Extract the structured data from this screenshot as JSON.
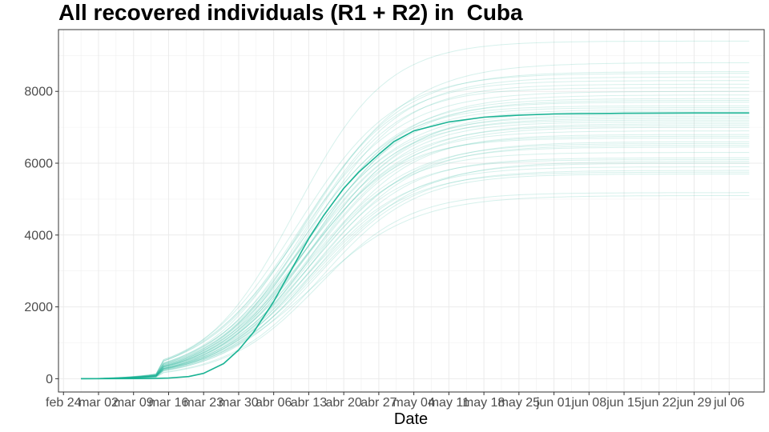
{
  "chart_data": {
    "type": "line",
    "title": "All recovered individuals (R1 + R2) in  Cuba",
    "xlabel": "Date",
    "ylabel": "",
    "x_start_day": -3.5,
    "x_end_day": 130,
    "x_range_days": [
      -8,
      133
    ],
    "ylim": [
      -370,
      9720
    ],
    "y_ticks": [
      0,
      2000,
      4000,
      6000,
      8000
    ],
    "x_ticks": [
      {
        "label": "feb 24",
        "day": -7
      },
      {
        "label": "mar 02",
        "day": 0
      },
      {
        "label": "mar 09",
        "day": 7
      },
      {
        "label": "mar 16",
        "day": 14
      },
      {
        "label": "mar 23",
        "day": 21
      },
      {
        "label": "mar 30",
        "day": 28
      },
      {
        "label": "abr 06",
        "day": 35
      },
      {
        "label": "abr 13",
        "day": 42
      },
      {
        "label": "abr 20",
        "day": 49
      },
      {
        "label": "abr 27",
        "day": 56
      },
      {
        "label": "may 04",
        "day": 63
      },
      {
        "label": "may 11",
        "day": 70
      },
      {
        "label": "may 18",
        "day": 77
      },
      {
        "label": "may 25",
        "day": 84
      },
      {
        "label": "jun 01",
        "day": 91
      },
      {
        "label": "jun 08",
        "day": 98
      },
      {
        "label": "jun 15",
        "day": 105
      },
      {
        "label": "jun 22",
        "day": 112
      },
      {
        "label": "jun 29",
        "day": 119
      },
      {
        "label": "jul 06",
        "day": 126
      }
    ],
    "color": "#1ab394",
    "main_series": {
      "name": "median",
      "points": [
        [
          -3.5,
          0
        ],
        [
          10,
          5
        ],
        [
          14,
          18
        ],
        [
          18,
          60
        ],
        [
          21,
          150
        ],
        [
          25,
          420
        ],
        [
          28,
          800
        ],
        [
          31,
          1300
        ],
        [
          35,
          2150
        ],
        [
          38,
          2900
        ],
        [
          42,
          3900
        ],
        [
          45,
          4550
        ],
        [
          49,
          5300
        ],
        [
          52,
          5750
        ],
        [
          56,
          6250
        ],
        [
          59,
          6600
        ],
        [
          63,
          6900
        ],
        [
          70,
          7150
        ],
        [
          77,
          7280
        ],
        [
          84,
          7340
        ],
        [
          91,
          7370
        ],
        [
          105,
          7390
        ],
        [
          119,
          7400
        ],
        [
          130,
          7400
        ]
      ]
    },
    "ensemble_series_finals": [
      5100,
      5180,
      5700,
      5750,
      5800,
      5900,
      6000,
      6050,
      6100,
      6150,
      6300,
      6450,
      6500,
      6550,
      6600,
      6700,
      6750,
      6800,
      6900,
      7000,
      7050,
      7100,
      7150,
      7200,
      7250,
      7300,
      7350,
      7450,
      7500,
      7550,
      7600,
      7700,
      7750,
      7800,
      7900,
      8000,
      8100,
      8200,
      8300,
      8400,
      8500,
      8550,
      8800,
      9400
    ]
  }
}
